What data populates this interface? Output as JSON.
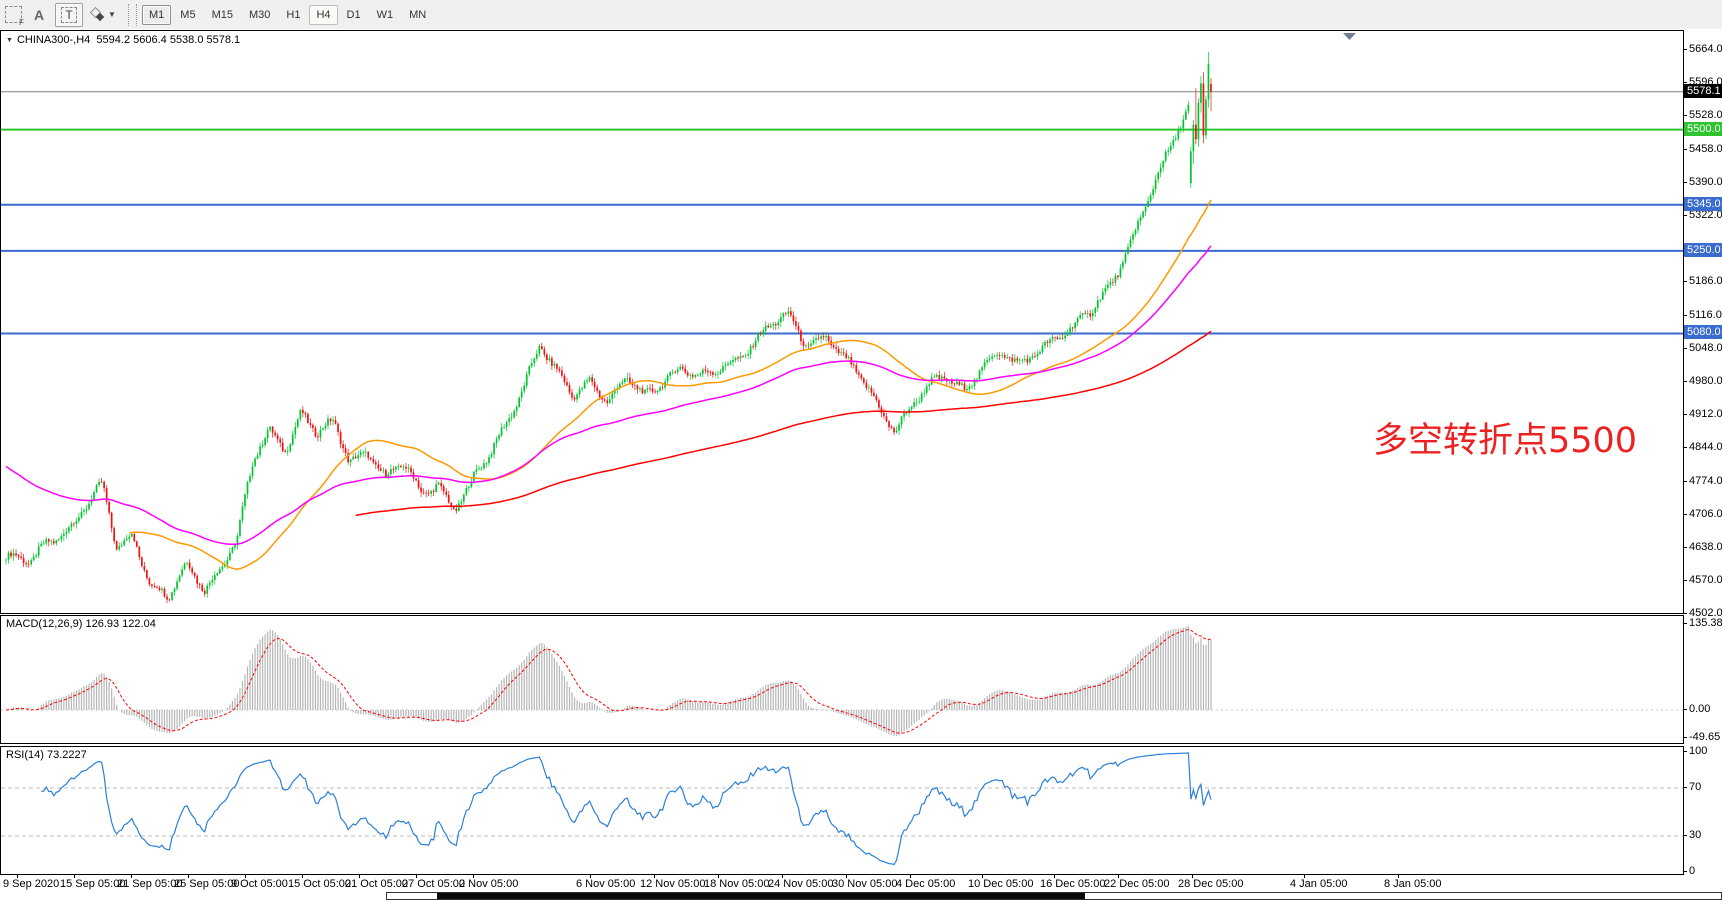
{
  "toolbar": {
    "tool_a": "A",
    "tool_t": "T",
    "timeframes": [
      {
        "label": "M1",
        "state": "pressed"
      },
      {
        "label": "M5",
        "state": "normal"
      },
      {
        "label": "M15",
        "state": "normal"
      },
      {
        "label": "M30",
        "state": "normal"
      },
      {
        "label": "H1",
        "state": "normal"
      },
      {
        "label": "H4",
        "state": "active"
      },
      {
        "label": "D1",
        "state": "normal"
      },
      {
        "label": "W1",
        "state": "normal"
      },
      {
        "label": "MN",
        "state": "normal"
      }
    ]
  },
  "chart": {
    "title_symbol": "CHINA300-,H4",
    "title_ohlc": "5594.2 5606.4 5538.0 5578.1"
  },
  "chart_data": {
    "type": "candlestick",
    "symbol": "CHINA300-",
    "timeframe": "H4",
    "current_bar": {
      "open": 5594.2,
      "high": 5606.4,
      "low": 5538.0,
      "close": 5578.1
    },
    "price_axis": {
      "min": 4502.0,
      "max": 5664.0,
      "ticks": [
        "5664.0",
        "5596.0",
        "5528.0",
        "5458.0",
        "5390.0",
        "5322.0",
        "5250.0",
        "5186.0",
        "5116.0",
        "5048.0",
        "4980.0",
        "4912.0",
        "4844.0",
        "4774.0",
        "4706.0",
        "4638.0",
        "4570.0",
        "4502.0"
      ]
    },
    "levels": [
      {
        "price": 5578.1,
        "label": "5578.1",
        "badge_bg": "#000000",
        "line": "#808080",
        "width": 1,
        "role": "last-price"
      },
      {
        "price": 5500.0,
        "label": "5500.0",
        "badge_bg": "#2EC42E",
        "line": "#2EC42E",
        "width": 2,
        "role": "pivot"
      },
      {
        "price": 5345.0,
        "label": "5345.0",
        "badge_bg": "#3A6BCF",
        "line": "#3A6BCF",
        "width": 2,
        "role": "support"
      },
      {
        "price": 5250.0,
        "label": "5250.0",
        "badge_bg": "#3A6BCF",
        "line": "#3A6BCF",
        "width": 2,
        "role": "support"
      },
      {
        "price": 5080.0,
        "label": "5080.0",
        "badge_bg": "#3A6BCF",
        "line": "#3A6BCF",
        "width": 2,
        "role": "support"
      }
    ],
    "colors": {
      "up": "#00C62E",
      "down": "#F21111",
      "macd_hist": "#B6B6B6",
      "macd_signal": "#FF0000",
      "rsi": "#2B7FD9",
      "marker": "#708090"
    },
    "bars_count": 480,
    "close_anchors": [
      [
        0.0,
        4620
      ],
      [
        0.02,
        4600
      ],
      [
        0.035,
        4655
      ],
      [
        0.055,
        4690
      ],
      [
        0.08,
        4760
      ],
      [
        0.092,
        4635
      ],
      [
        0.105,
        4675
      ],
      [
        0.12,
        4565
      ],
      [
        0.135,
        4530
      ],
      [
        0.15,
        4600
      ],
      [
        0.165,
        4560
      ],
      [
        0.18,
        4610
      ],
      [
        0.192,
        4655
      ],
      [
        0.205,
        4810
      ],
      [
        0.218,
        4880
      ],
      [
        0.232,
        4850
      ],
      [
        0.245,
        4920
      ],
      [
        0.258,
        4868
      ],
      [
        0.272,
        4890
      ],
      [
        0.285,
        4820
      ],
      [
        0.3,
        4845
      ],
      [
        0.315,
        4780
      ],
      [
        0.33,
        4805
      ],
      [
        0.345,
        4750
      ],
      [
        0.358,
        4780
      ],
      [
        0.372,
        4718
      ],
      [
        0.385,
        4760
      ],
      [
        0.4,
        4822
      ],
      [
        0.415,
        4900
      ],
      [
        0.43,
        4980
      ],
      [
        0.443,
        5050
      ],
      [
        0.455,
        5000
      ],
      [
        0.47,
        4955
      ],
      [
        0.485,
        4992
      ],
      [
        0.5,
        4938
      ],
      [
        0.515,
        4980
      ],
      [
        0.53,
        4950
      ],
      [
        0.545,
        4990
      ],
      [
        0.56,
        5012
      ],
      [
        0.575,
        4980
      ],
      [
        0.59,
        5002
      ],
      [
        0.605,
        5032
      ],
      [
        0.62,
        5062
      ],
      [
        0.635,
        5092
      ],
      [
        0.65,
        5112
      ],
      [
        0.665,
        5060
      ],
      [
        0.68,
        5082
      ],
      [
        0.695,
        5022
      ],
      [
        0.71,
        4982
      ],
      [
        0.725,
        4930
      ],
      [
        0.738,
        4888
      ],
      [
        0.752,
        4930
      ],
      [
        0.765,
        4962
      ],
      [
        0.78,
        4992
      ],
      [
        0.795,
        4972
      ],
      [
        0.81,
        5012
      ],
      [
        0.825,
        5032
      ],
      [
        0.84,
        5012
      ],
      [
        0.855,
        5052
      ],
      [
        0.87,
        5072
      ],
      [
        0.885,
        5082
      ],
      [
        0.9,
        5122
      ],
      [
        0.915,
        5182
      ],
      [
        0.93,
        5252
      ],
      [
        0.945,
        5332
      ],
      [
        0.96,
        5422
      ],
      [
        0.975,
        5520
      ],
      [
        0.99,
        5600
      ],
      [
        1.0,
        5580
      ]
    ],
    "wiggle": {
      "a1": 7,
      "f1": 0.55,
      "a2": 10,
      "f2": 0.21,
      "noise": 12,
      "wick": 9
    },
    "last_bars": [
      [
        5390,
        5465,
        5380,
        5455
      ],
      [
        5455,
        5520,
        5430,
        5510
      ],
      [
        5510,
        5585,
        5470,
        5480
      ],
      [
        5480,
        5565,
        5465,
        5555
      ],
      [
        5555,
        5610,
        5535,
        5595
      ],
      [
        5595,
        5618,
        5472,
        5488
      ],
      [
        5488,
        5570,
        5480,
        5562
      ],
      [
        5562,
        5660,
        5545,
        5636
      ],
      [
        5594.2,
        5606.4,
        5538.0,
        5578.1
      ]
    ],
    "moving_averages": [
      {
        "name": "ma-fast",
        "method": "sma",
        "window": 50,
        "color": "#FF9900",
        "width": 1.5
      },
      {
        "name": "ma-mid",
        "method": "ema",
        "window": 100,
        "seed": 4810,
        "color": "#FF00FF",
        "width": 1.5
      },
      {
        "name": "ma-slow",
        "method": "smma",
        "window": 140,
        "color": "#FF0000",
        "width": 1.5
      }
    ],
    "macd": {
      "label": "MACD(12,26,9)",
      "values": "126.93 122.04",
      "params": [
        12,
        26,
        9
      ],
      "axis": [
        "135.38",
        "0.00",
        "-49.65"
      ]
    },
    "rsi": {
      "label": "RSI(14)",
      "value": "73.2227",
      "period": 14,
      "axis": [
        "100",
        "70",
        "30",
        "0"
      ],
      "levels": [
        70,
        30
      ]
    },
    "time_axis": {
      "labels": [
        "9 Sep 2020",
        "15 Sep 05:00",
        "21 Sep 05:00",
        "25 Sep 05:00",
        "9 Oct 05:00",
        "15 Oct 05:00",
        "21 Oct 05:00",
        "27 Oct 05:00",
        "2 Nov 05:00",
        "6 Nov 05:00",
        "12 Nov 05:00",
        "18 Nov 05:00",
        "24 Nov 05:00",
        "30 Nov 05:00",
        "4 Dec 05:00",
        "10 Dec 05:00",
        "16 Dec 05:00",
        "22 Dec 05:00",
        "28 Dec 05:00",
        "4 Jan 05:00",
        "8 Jan 05:00"
      ],
      "x": [
        3,
        60,
        117,
        174,
        231,
        288,
        345,
        402,
        459,
        576,
        640,
        704,
        768,
        832,
        896,
        968,
        1040,
        1104,
        1178,
        1290,
        1384
      ]
    },
    "annotation": {
      "text": "多空转折点5500",
      "color": "#EC2222"
    }
  }
}
